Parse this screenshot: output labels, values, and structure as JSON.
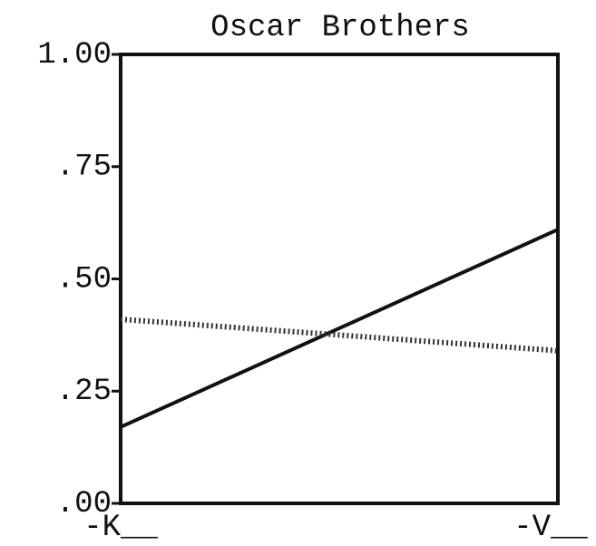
{
  "chart_data": {
    "type": "line",
    "title": "Oscar Brothers",
    "categories": [
      "-K__",
      "-V__"
    ],
    "series": [
      {
        "color": "#111111",
        "style": "solid",
        "values": [
          0.17,
          0.61
        ]
      },
      {
        "color": "#333333",
        "style": "dotted",
        "values": [
          0.41,
          0.34
        ]
      }
    ],
    "ylim": [
      0,
      1
    ],
    "yticks": [
      {
        "value": 0,
        "label": ".00"
      },
      {
        "value": 0.25,
        "label": ".25"
      },
      {
        "value": 0.5,
        "label": ".50"
      },
      {
        "value": 0.75,
        "label": ".75"
      },
      {
        "value": 1,
        "label": "1.00"
      }
    ],
    "grid": false
  }
}
